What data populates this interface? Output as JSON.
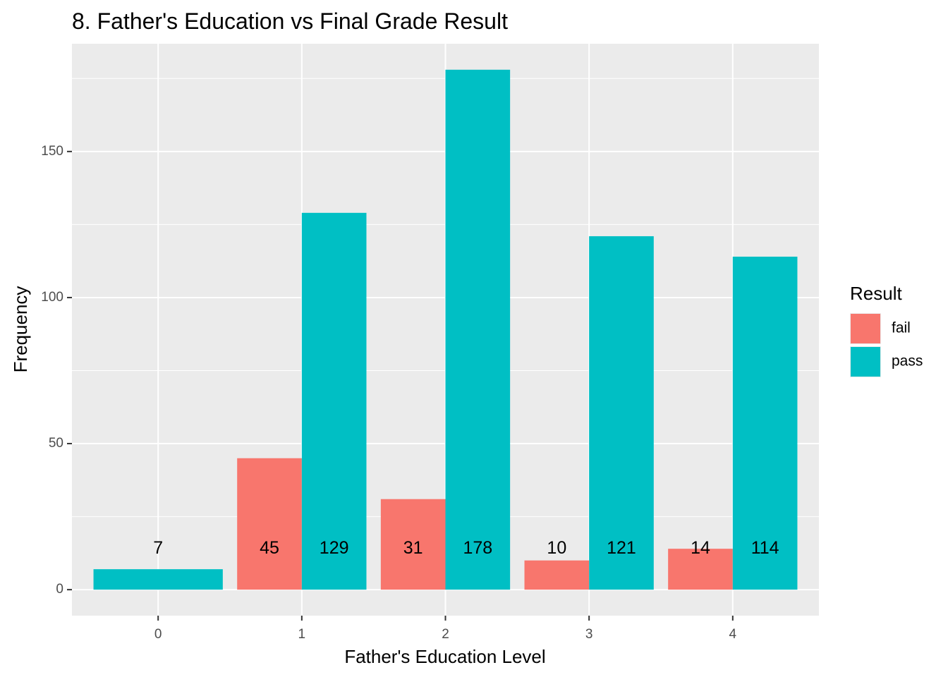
{
  "chart_data": {
    "type": "bar",
    "title": "8. Father's Education vs Final Grade Result",
    "xlabel": "Father's Education Level",
    "ylabel": "Frequency",
    "categories": [
      "0",
      "1",
      "2",
      "3",
      "4"
    ],
    "series": [
      {
        "name": "fail",
        "color": "#F8766D",
        "values": [
          null,
          45,
          31,
          10,
          14
        ]
      },
      {
        "name": "pass",
        "color": "#00BFC4",
        "values": [
          7,
          129,
          178,
          121,
          114
        ]
      }
    ],
    "yticks": [
      0,
      50,
      100,
      150
    ],
    "ylim": [
      -8.9,
      186.9
    ],
    "grid": true,
    "legend": {
      "title": "Result",
      "position": "right"
    }
  }
}
